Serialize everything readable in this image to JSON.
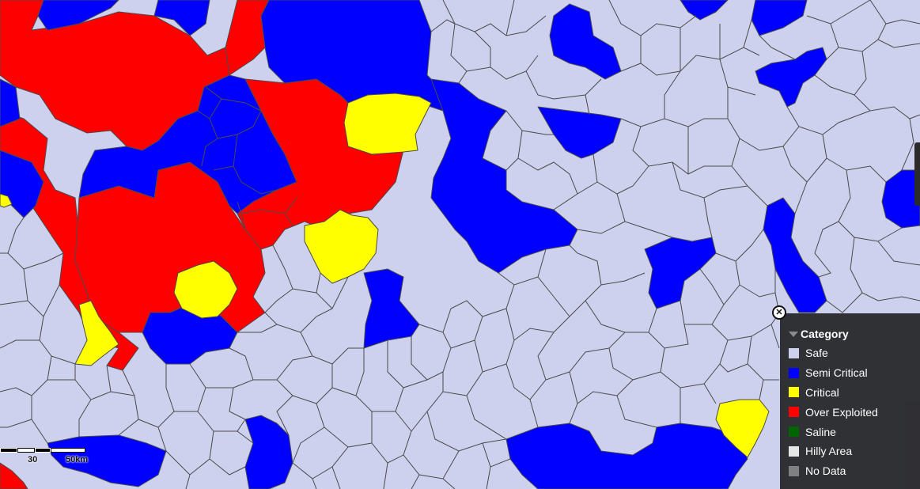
{
  "legend": {
    "title": "Category",
    "items": [
      {
        "label": "Safe",
        "color": "#cdd1ee"
      },
      {
        "label": "Semi Critical",
        "color": "#0000ff"
      },
      {
        "label": "Critical",
        "color": "#ffff00"
      },
      {
        "label": "Over Exploited",
        "color": "#ff0000"
      },
      {
        "label": "Saline",
        "color": "#006400"
      },
      {
        "label": "Hilly Area",
        "color": "#e6e6e6"
      },
      {
        "label": "No Data",
        "color": "#808080"
      }
    ]
  },
  "scale": {
    "mid_label": "30",
    "end_label": "50km"
  },
  "colors": {
    "border": "#4a4a4a",
    "background": "#cdd1ee"
  }
}
